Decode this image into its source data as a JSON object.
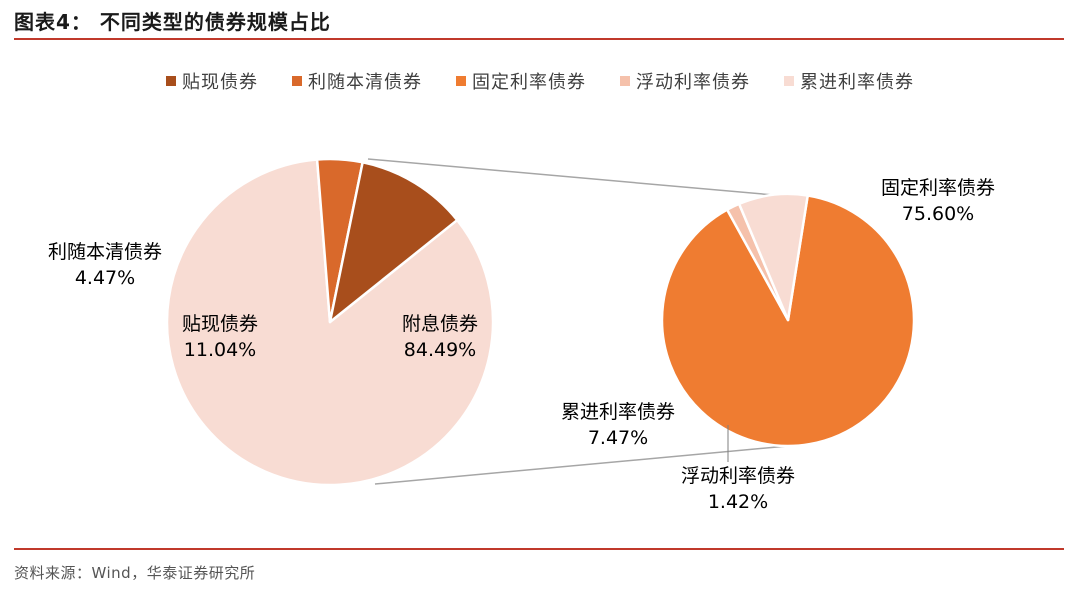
{
  "header": {
    "title": "图表4：  不同类型的债券规模占比"
  },
  "footer": {
    "source": "资料来源：Wind，华泰证券研究所"
  },
  "colors": {
    "贴现债券": "#a84e1c",
    "利随本清债券": "#d9692b",
    "固定利率债券": "#ef7c31",
    "浮动利率债券": "#f5c1ab",
    "累进利率债券": "#f8dcd3",
    "附息债券": "#f8dcd3",
    "connector": "#a6a6a6"
  },
  "chart_data": {
    "type": "pie",
    "legend": [
      "贴现债券",
      "利随本清债券",
      "固定利率债券",
      "浮动利率债券",
      "累进利率债券"
    ],
    "legend_position": "top",
    "pies": [
      {
        "slices": [
          {
            "name": "附息债券",
            "value": 84.49,
            "value_label": "84.49%"
          },
          {
            "name": "利随本清债券",
            "value": 4.47,
            "value_label": "4.47%"
          },
          {
            "name": "贴现债券",
            "value": 11.04,
            "value_label": "11.04%"
          }
        ]
      },
      {
        "slices": [
          {
            "name": "固定利率债券",
            "value": 75.6,
            "value_label": "75.60%"
          },
          {
            "name": "浮动利率债券",
            "value": 1.42,
            "value_label": "1.42%"
          },
          {
            "name": "累进利率债券",
            "value": 7.47,
            "value_label": "7.47%"
          }
        ]
      }
    ]
  }
}
